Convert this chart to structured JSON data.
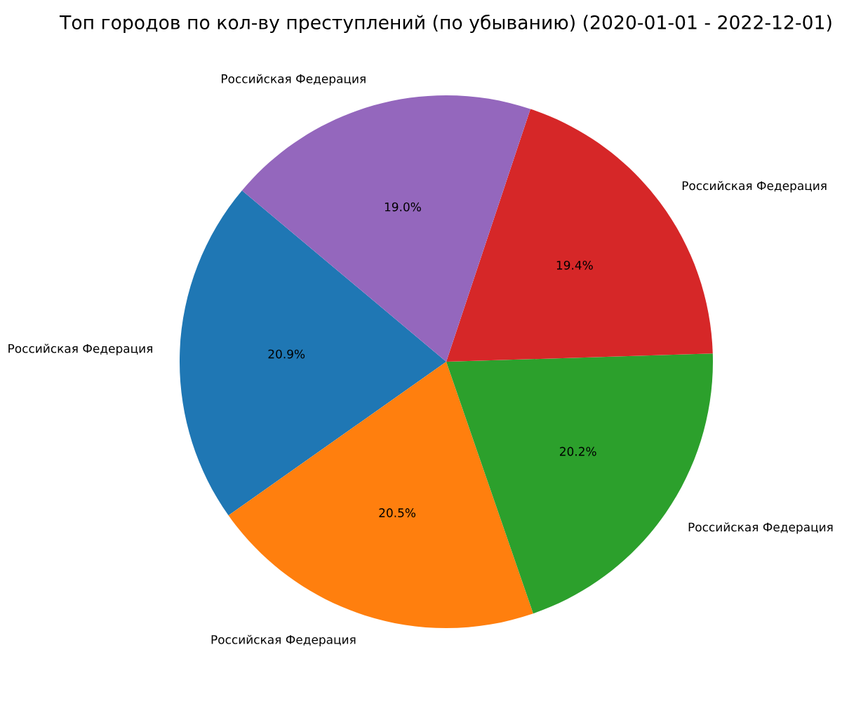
{
  "chart_data": {
    "type": "pie",
    "title": "Топ городов по кол-ву преступлений (по убыванию) (2020-01-01 - 2022-12-01)",
    "categories": [
      "Российская Федерация",
      "Российская Федерация",
      "Российская Федерация",
      "Российская Федерация",
      "Российская Федерация"
    ],
    "values": [
      20.9,
      20.5,
      20.2,
      19.4,
      19.0
    ],
    "value_labels": [
      "20.9%",
      "20.5%",
      "20.2%",
      "19.4%",
      "19.0%"
    ],
    "colors": [
      "#1f77b4",
      "#ff7f0e",
      "#2ca02c",
      "#d62728",
      "#9467bd"
    ]
  }
}
